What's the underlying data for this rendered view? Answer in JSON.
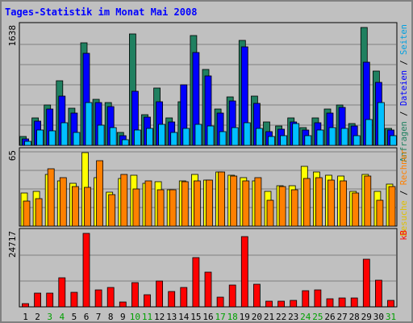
{
  "chart_data": {
    "type": "bar",
    "title": "Tages-Statistik im Monat Mai 2008",
    "categories": [
      "1",
      "2",
      "3",
      "4",
      "5",
      "6",
      "7",
      "8",
      "9",
      "10",
      "11",
      "12",
      "13",
      "14",
      "15",
      "16",
      "17",
      "18",
      "19",
      "20",
      "21",
      "22",
      "23",
      "24",
      "25",
      "26",
      "27",
      "28",
      "29",
      "30",
      "31"
    ],
    "weekend_days": [
      "3",
      "4",
      "10",
      "11",
      "17",
      "18",
      "24",
      "25",
      "31"
    ],
    "panels": [
      {
        "name": "requests",
        "ymax_label": "1638",
        "ymax": 1638,
        "legend": [
          "Anfragen",
          "Dateien",
          "Seiten"
        ],
        "series": [
          {
            "name": "Anfragen",
            "color": "#208060",
            "values": [
              120,
              380,
              560,
              900,
              520,
              1420,
              640,
              590,
              180,
              1550,
              430,
              800,
              380,
              610,
              1530,
              1050,
              500,
              670,
              1460,
              680,
              320,
              270,
              380,
              250,
              380,
              500,
              560,
              300,
              1640,
              1030,
              230
            ]
          },
          {
            "name": "Dateien",
            "color": "#0000ff",
            "values": [
              90,
              340,
              500,
              680,
              450,
              1280,
              600,
              540,
              130,
              750,
              390,
              610,
              330,
              840,
              1290,
              970,
              450,
              620,
              1370,
              580,
              190,
              220,
              330,
              210,
              310,
              450,
              530,
              270,
              1150,
              880,
              210
            ]
          },
          {
            "name": "Seiten",
            "color": "#00c0ff",
            "values": [
              60,
              210,
              200,
              310,
              180,
              600,
              280,
              250,
              80,
              210,
              230,
              290,
              180,
              230,
              290,
              270,
              190,
              250,
              310,
              240,
              120,
              130,
              300,
              140,
              210,
              250,
              230,
              130,
              360,
              590,
              140
            ]
          }
        ]
      },
      {
        "name": "visits",
        "ymax_label": "65",
        "ymax": 65,
        "legend": [
          "Besuche",
          "Rechner"
        ],
        "series": [
          {
            "name": "Besuche",
            "color": "#ffff00",
            "values": [
              29,
              31,
              46,
              40,
              38,
              65,
              43,
              30,
              42,
              45,
              38,
              39,
              32,
              40,
              46,
              41,
              48,
              45,
              43,
              40,
              31,
              36,
              36,
              53,
              48,
              45,
              44,
              31,
              46,
              31,
              37
            ]
          },
          {
            "name": "Rechner",
            "color": "#ff8000",
            "values": [
              22,
              24,
              51,
              43,
              35,
              34,
              58,
              28,
              46,
              33,
              40,
              32,
              32,
              39,
              40,
              41,
              48,
              44,
              40,
              43,
              23,
              35,
              32,
              42,
              43,
              41,
              40,
              29,
              44,
              23,
              35
            ]
          }
        ]
      },
      {
        "name": "kb",
        "ymax_label": "24717",
        "ymax": 24717,
        "legend": [
          "kB"
        ],
        "series": [
          {
            "name": "kB",
            "color": "#ff0000",
            "values": [
              1100,
              4700,
              4600,
              9800,
              4800,
              24717,
              5800,
              6400,
              1500,
              8200,
              4200,
              8800,
              5100,
              6600,
              16700,
              11700,
              3200,
              7300,
              23500,
              7700,
              1900,
              2000,
              2300,
              5300,
              5800,
              2700,
              2900,
              2900,
              16000,
              8900,
              2200
            ]
          }
        ]
      }
    ]
  },
  "legend_separator": " / "
}
